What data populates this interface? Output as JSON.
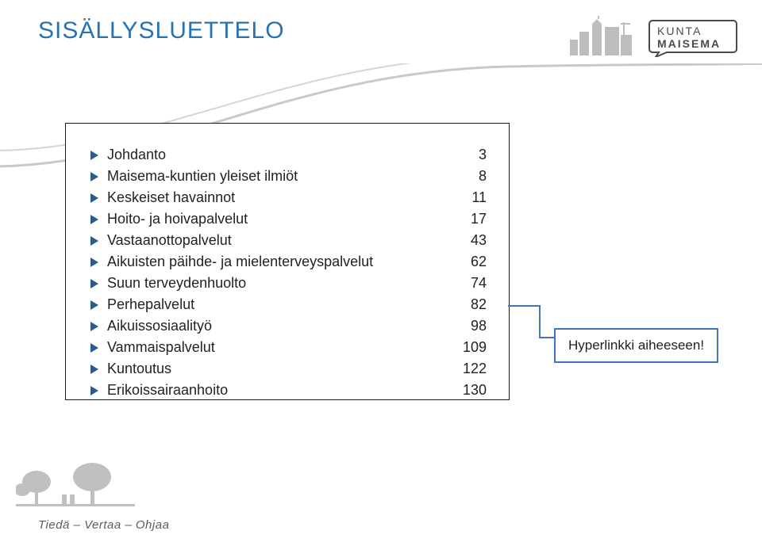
{
  "title": {
    "text": "SISÄLLYSLUETTELO",
    "color": "#2972b0",
    "font_size": 30
  },
  "brand": {
    "line1": "KUNTA",
    "line2": "MAISEMA",
    "text_color": "#4a4a4a",
    "silhouette_color": "#bdbdbd",
    "box_stroke": "#4a4a4a"
  },
  "curve": {
    "stroke": "#c9c9c9",
    "width": 3
  },
  "box": {
    "border_color": "#1a1a1a"
  },
  "arrow": {
    "fill": "#2c5b8a"
  },
  "toc": [
    {
      "label": "Johdanto",
      "page": "3"
    },
    {
      "label": "Maisema-kuntien yleiset ilmiöt",
      "page": "8"
    },
    {
      "label": "Keskeiset havainnot",
      "page": "11"
    },
    {
      "label": "Hoito- ja hoivapalvelut",
      "page": "17"
    },
    {
      "label": "Vastaanottopalvelut",
      "page": "43"
    },
    {
      "label": "Aikuisten päihde- ja mielenterveyspalvelut",
      "page": "62"
    },
    {
      "label": "Suun terveydenhuolto",
      "page": "74"
    },
    {
      "label": "Perhepalvelut",
      "page": "82"
    },
    {
      "label": "Aikuissosiaalityö",
      "page": "98"
    },
    {
      "label": "Vammaispalvelut",
      "page": "109"
    },
    {
      "label": "Kuntoutus",
      "page": "122"
    },
    {
      "label": "Erikoissairaanhoito",
      "page": "130"
    }
  ],
  "callout": {
    "text": "Hyperlinkki aiheeseen!",
    "border_color": "#4472c4",
    "line_color": "#4472c4"
  },
  "footer": {
    "text": "Tiedä – Vertaa – Ohjaa",
    "color": "#5c5c5c",
    "art_color": "#c0c0c0"
  }
}
